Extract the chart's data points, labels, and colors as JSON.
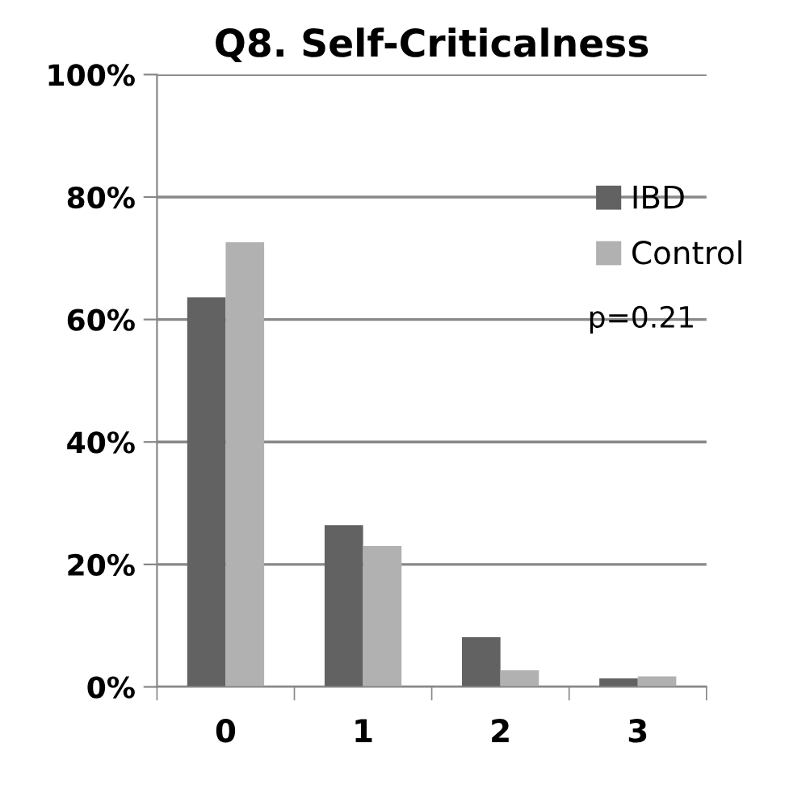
{
  "chart_data": {
    "type": "bar",
    "title": "Q8. Self-Criticalness",
    "categories": [
      "0",
      "1",
      "2",
      "3"
    ],
    "series": [
      {
        "name": "IBD",
        "color": "#626262",
        "values": [
          63.6,
          26.4,
          8.1,
          1.4
        ]
      },
      {
        "name": "Control",
        "color": "#b1b1b1",
        "values": [
          72.6,
          23.0,
          2.7,
          1.7
        ]
      }
    ],
    "ylim": [
      0,
      100
    ],
    "yticks": [
      {
        "value": 0,
        "label": "0%"
      },
      {
        "value": 20,
        "label": "20%"
      },
      {
        "value": 40,
        "label": "40%"
      },
      {
        "value": 60,
        "label": "60%"
      },
      {
        "value": 80,
        "label": "80%"
      },
      {
        "value": 100,
        "label": "100%"
      }
    ],
    "grid": "y",
    "legend": "right",
    "annotations": [
      "p=0.21"
    ]
  }
}
